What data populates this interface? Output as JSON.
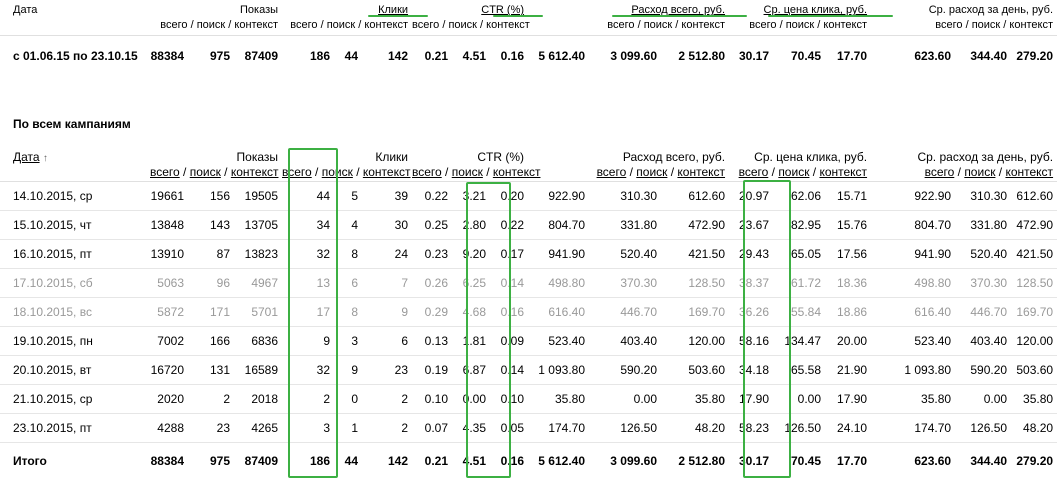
{
  "summary": {
    "date_label": "Дата",
    "groups": {
      "shows": "Показы",
      "clicks": "Клики",
      "ctr": "CTR (%)",
      "cost": "Расход всего, руб.",
      "cpc": "Ср. цена клика, руб.",
      "daily": "Ср. расход за день, руб."
    },
    "sub": {
      "all": "всего",
      "search": "поиск",
      "context": "контекст",
      "sep": " / "
    },
    "period": "с 01.06.15 по 23.10.15",
    "values": [
      "88384",
      "975",
      "87409",
      "186",
      "44",
      "142",
      "0.21",
      "4.51",
      "0.16",
      "5 612.40",
      "3 099.60",
      "2 512.80",
      "30.17",
      "70.45",
      "17.70",
      "623.60",
      "344.40",
      "279.20"
    ]
  },
  "section_title": "По всем кампаниям",
  "detail": {
    "date_label": "Дата",
    "sort_arrow": "↑",
    "rows": [
      {
        "date": "14.10.2015, ср",
        "muted": false,
        "values": [
          "19661",
          "156",
          "19505",
          "44",
          "5",
          "39",
          "0.22",
          "3.21",
          "0.20",
          "922.90",
          "310.30",
          "612.60",
          "20.97",
          "62.06",
          "15.71",
          "922.90",
          "310.30",
          "612.60"
        ]
      },
      {
        "date": "15.10.2015, чт",
        "muted": false,
        "values": [
          "13848",
          "143",
          "13705",
          "34",
          "4",
          "30",
          "0.25",
          "2.80",
          "0.22",
          "804.70",
          "331.80",
          "472.90",
          "23.67",
          "82.95",
          "15.76",
          "804.70",
          "331.80",
          "472.90"
        ]
      },
      {
        "date": "16.10.2015, пт",
        "muted": false,
        "values": [
          "13910",
          "87",
          "13823",
          "32",
          "8",
          "24",
          "0.23",
          "9.20",
          "0.17",
          "941.90",
          "520.40",
          "421.50",
          "29.43",
          "65.05",
          "17.56",
          "941.90",
          "520.40",
          "421.50"
        ]
      },
      {
        "date": "17.10.2015, сб",
        "muted": true,
        "values": [
          "5063",
          "96",
          "4967",
          "13",
          "6",
          "7",
          "0.26",
          "6.25",
          "0.14",
          "498.80",
          "370.30",
          "128.50",
          "38.37",
          "61.72",
          "18.36",
          "498.80",
          "370.30",
          "128.50"
        ]
      },
      {
        "date": "18.10.2015, вс",
        "muted": true,
        "values": [
          "5872",
          "171",
          "5701",
          "17",
          "8",
          "9",
          "0.29",
          "4.68",
          "0.16",
          "616.40",
          "446.70",
          "169.70",
          "36.26",
          "55.84",
          "18.86",
          "616.40",
          "446.70",
          "169.70"
        ]
      },
      {
        "date": "19.10.2015, пн",
        "muted": false,
        "values": [
          "7002",
          "166",
          "6836",
          "9",
          "3",
          "6",
          "0.13",
          "1.81",
          "0.09",
          "523.40",
          "403.40",
          "120.00",
          "58.16",
          "134.47",
          "20.00",
          "523.40",
          "403.40",
          "120.00"
        ]
      },
      {
        "date": "20.10.2015, вт",
        "muted": false,
        "values": [
          "16720",
          "131",
          "16589",
          "32",
          "9",
          "23",
          "0.19",
          "6.87",
          "0.14",
          "1 093.80",
          "590.20",
          "503.60",
          "34.18",
          "65.58",
          "21.90",
          "1 093.80",
          "590.20",
          "503.60"
        ]
      },
      {
        "date": "21.10.2015, ср",
        "muted": false,
        "values": [
          "2020",
          "2",
          "2018",
          "2",
          "0",
          "2",
          "0.10",
          "0.00",
          "0.10",
          "35.80",
          "0.00",
          "35.80",
          "17.90",
          "0.00",
          "17.90",
          "35.80",
          "0.00",
          "35.80"
        ]
      },
      {
        "date": "23.10.2015, пт",
        "muted": false,
        "values": [
          "4288",
          "23",
          "4265",
          "3",
          "1",
          "2",
          "0.07",
          "4.35",
          "0.05",
          "174.70",
          "126.50",
          "48.20",
          "58.23",
          "126.50",
          "24.10",
          "174.70",
          "126.50",
          "48.20"
        ]
      }
    ],
    "total": {
      "label": "Итого",
      "values": [
        "88384",
        "975",
        "87409",
        "186",
        "44",
        "142",
        "0.21",
        "4.51",
        "0.16",
        "5 612.40",
        "3 099.60",
        "2 512.80",
        "30.17",
        "70.45",
        "17.70",
        "623.60",
        "344.40",
        "279.20"
      ]
    }
  },
  "colors": {
    "highlight": "#3cb043",
    "muted_text": "#999999"
  }
}
